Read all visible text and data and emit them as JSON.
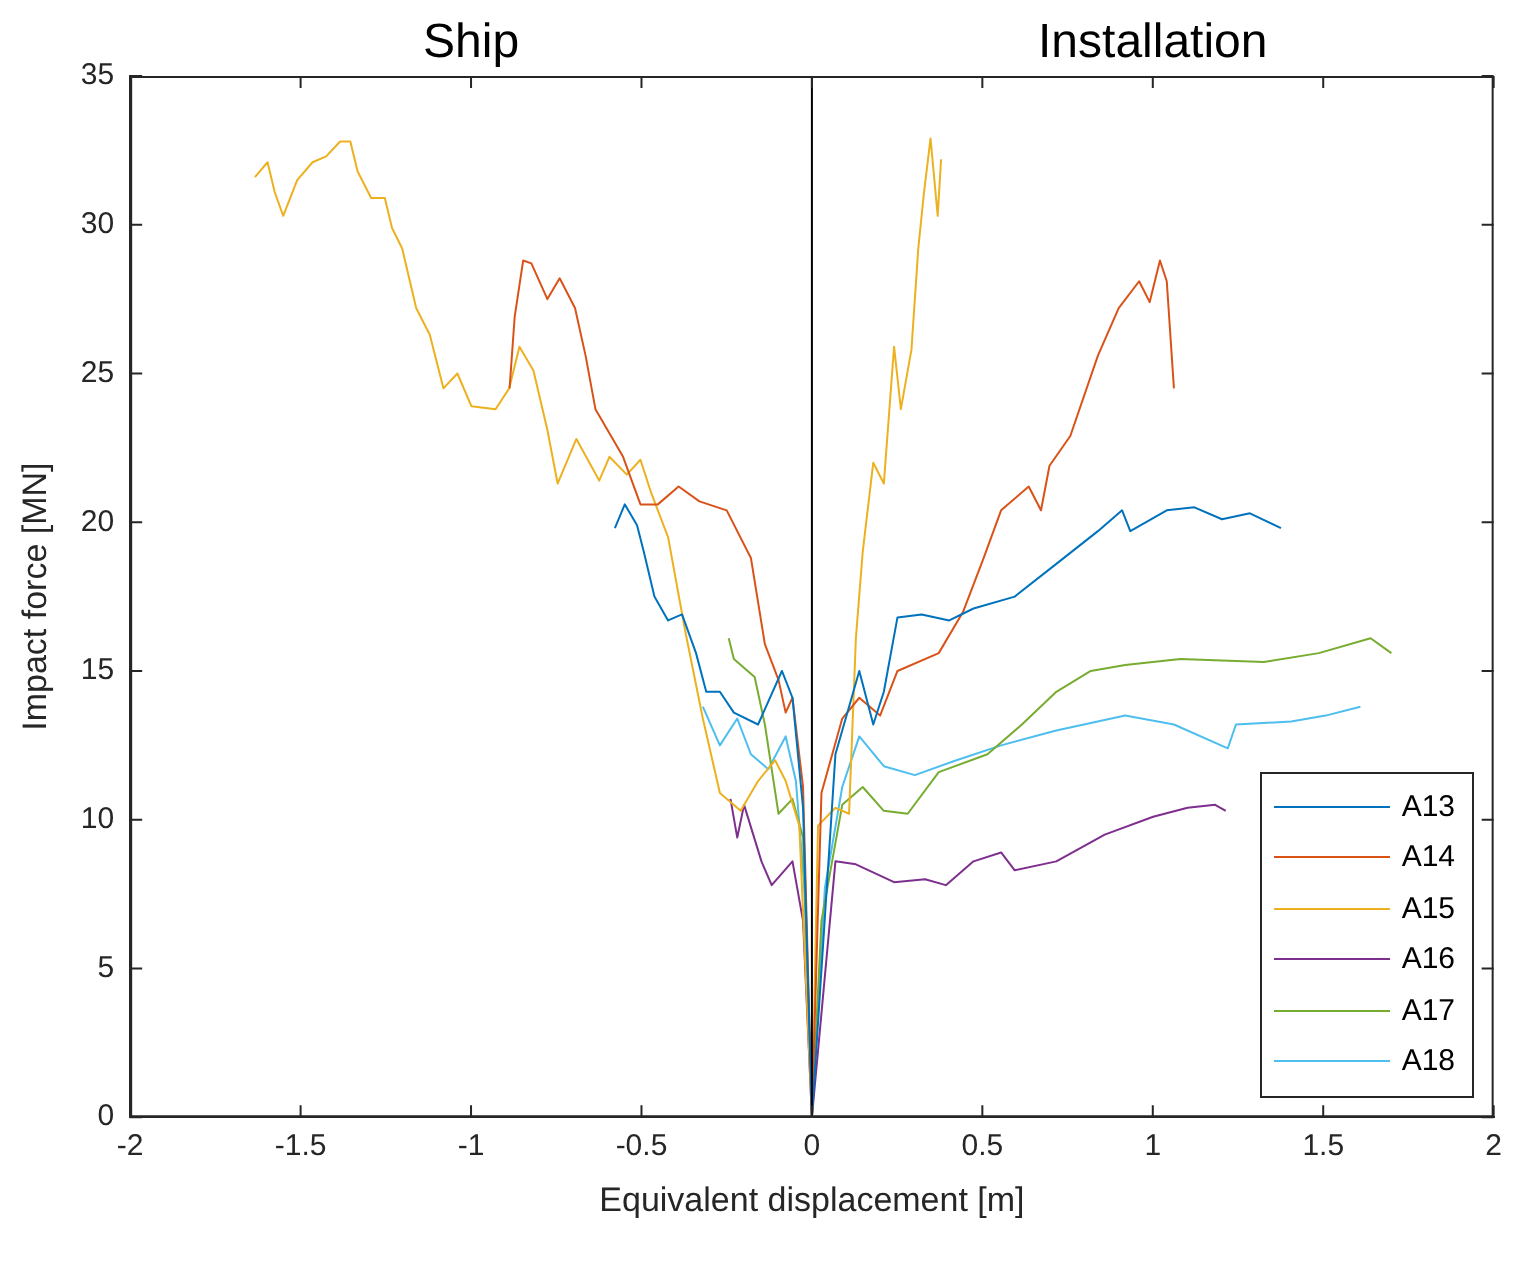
{
  "chart_data": {
    "type": "line",
    "xlabel": "Equivalent displacement [m]",
    "ylabel": "Impact force [MN]",
    "annotations": [
      "Ship",
      "Installation"
    ],
    "xlim": [
      -2,
      2
    ],
    "xticks": [
      -2,
      -1.5,
      -1,
      -0.5,
      0,
      0.5,
      1,
      1.5,
      2
    ],
    "ylim": [
      0,
      35
    ],
    "yticks": [
      0,
      5,
      10,
      15,
      20,
      25,
      30,
      35
    ],
    "grid": false,
    "legend": "bottom right",
    "marker": "none",
    "line_style": "solid",
    "ref_lines": [
      {
        "axis": "x",
        "value": 0,
        "color": "#000000"
      }
    ],
    "series": [
      {
        "name": "A13",
        "color": "#0072bd",
        "x": [
          -0.578,
          -0.549,
          -0.513,
          -0.493,
          -0.462,
          -0.422,
          -0.381,
          -0.34,
          -0.31,
          -0.27,
          -0.229,
          -0.158,
          -0.088,
          -0.057,
          -0.026,
          0,
          0.069,
          0.139,
          0.18,
          0.211,
          0.251,
          0.322,
          0.403,
          0.474,
          0.595,
          0.717,
          0.839,
          0.91,
          0.934,
          1.041,
          1.122,
          1.203,
          1.285,
          1.376
        ],
        "values": [
          19.8,
          20.6,
          19.9,
          19.0,
          17.5,
          16.7,
          16.9,
          15.6,
          14.3,
          14.3,
          13.6,
          13.2,
          15.0,
          14.1,
          10.4,
          0,
          12.2,
          15.0,
          13.2,
          14.3,
          16.8,
          16.9,
          16.7,
          17.1,
          17.5,
          18.6,
          19.7,
          20.4,
          19.7,
          20.4,
          20.5,
          20.1,
          20.3,
          19.8
        ]
      },
      {
        "name": "A14",
        "color": "#d95319",
        "x": [
          -0.887,
          -0.872,
          -0.847,
          -0.823,
          -0.776,
          -0.74,
          -0.695,
          -0.664,
          -0.635,
          -0.554,
          -0.503,
          -0.452,
          -0.391,
          -0.33,
          -0.25,
          -0.179,
          -0.138,
          -0.098,
          -0.077,
          -0.057,
          -0.026,
          0,
          0.028,
          0.089,
          0.139,
          0.2,
          0.251,
          0.372,
          0.444,
          0.504,
          0.555,
          0.636,
          0.672,
          0.697,
          0.758,
          0.839,
          0.9,
          0.96,
          0.991,
          1.021,
          1.041,
          1.062
        ],
        "values": [
          24.5,
          26.9,
          28.8,
          28.7,
          27.5,
          28.2,
          27.2,
          25.6,
          23.8,
          22.2,
          20.6,
          20.6,
          21.2,
          20.7,
          20.4,
          18.8,
          15.9,
          14.7,
          13.6,
          14.1,
          11.1,
          0,
          10.9,
          13.4,
          14.1,
          13.5,
          15.0,
          15.6,
          17.0,
          18.8,
          20.4,
          21.2,
          20.4,
          21.9,
          22.9,
          25.6,
          27.2,
          28.1,
          27.4,
          28.8,
          28.1,
          24.5
        ]
      },
      {
        "name": "A15",
        "color": "#edb120",
        "x": [
          -1.634,
          -1.597,
          -1.576,
          -1.551,
          -1.51,
          -1.465,
          -1.425,
          -1.384,
          -1.354,
          -1.333,
          -1.293,
          -1.253,
          -1.232,
          -1.202,
          -1.161,
          -1.121,
          -1.081,
          -1.04,
          -0.999,
          -0.928,
          -0.888,
          -0.858,
          -0.817,
          -0.776,
          -0.746,
          -0.691,
          -0.624,
          -0.594,
          -0.543,
          -0.503,
          -0.472,
          -0.422,
          -0.371,
          -0.32,
          -0.27,
          -0.209,
          -0.158,
          -0.108,
          -0.077,
          -0.037,
          0,
          0.018,
          0.069,
          0.109,
          0.129,
          0.149,
          0.18,
          0.211,
          0.241,
          0.261,
          0.292,
          0.312,
          0.328,
          0.348,
          0.369,
          0.379
        ],
        "values": [
          31.6,
          32.1,
          31.1,
          30.3,
          31.5,
          32.1,
          32.3,
          32.8,
          32.8,
          31.8,
          30.9,
          30.9,
          29.9,
          29.2,
          27.2,
          26.3,
          24.5,
          25.0,
          23.9,
          23.8,
          24.5,
          25.9,
          25.1,
          23.1,
          21.3,
          22.8,
          21.4,
          22.2,
          21.6,
          22.1,
          21.0,
          19.5,
          16.3,
          13.4,
          10.9,
          10.3,
          11.3,
          12.0,
          11.3,
          9.8,
          0,
          9.8,
          10.4,
          10.2,
          16.1,
          19.0,
          22.0,
          21.3,
          25.9,
          23.8,
          25.8,
          29.2,
          31.0,
          32.9,
          30.3,
          32.2
        ]
      },
      {
        "name": "A16",
        "color": "#7e2f8e",
        "x": [
          -0.239,
          -0.219,
          -0.199,
          -0.148,
          -0.118,
          -0.057,
          -0.026,
          0,
          0.069,
          0.129,
          0.241,
          0.332,
          0.393,
          0.474,
          0.555,
          0.595,
          0.717,
          0.859,
          1.001,
          1.102,
          1.183,
          1.214
        ],
        "values": [
          10.7,
          9.4,
          10.5,
          8.6,
          7.8,
          8.6,
          6.6,
          0,
          8.6,
          8.5,
          7.9,
          8.0,
          7.8,
          8.6,
          8.9,
          8.3,
          8.6,
          9.5,
          10.1,
          10.4,
          10.5,
          10.3
        ]
      },
      {
        "name": "A17",
        "color": "#77ac30",
        "x": [
          -0.244,
          -0.229,
          -0.168,
          -0.138,
          -0.098,
          -0.057,
          -0.026,
          0,
          0.028,
          0.089,
          0.149,
          0.211,
          0.281,
          0.372,
          0.515,
          0.616,
          0.717,
          0.818,
          0.919,
          1.081,
          1.325,
          1.487,
          1.639,
          1.7
        ],
        "values": [
          16.1,
          15.4,
          14.8,
          13.2,
          10.2,
          10.7,
          9.4,
          0,
          6.6,
          10.5,
          11.1,
          10.3,
          10.2,
          11.6,
          12.2,
          13.2,
          14.3,
          15.0,
          15.2,
          15.4,
          15.3,
          15.6,
          16.1,
          15.6
        ]
      },
      {
        "name": "A18",
        "color": "#4dbeee",
        "x": [
          -0.32,
          -0.27,
          -0.219,
          -0.179,
          -0.128,
          -0.077,
          -0.047,
          -0.022,
          0,
          0.038,
          0.089,
          0.139,
          0.211,
          0.302,
          0.424,
          0.555,
          0.717,
          0.919,
          1.062,
          1.22,
          1.244,
          1.406,
          1.507,
          1.609
        ],
        "values": [
          13.8,
          12.5,
          13.4,
          12.2,
          11.7,
          12.8,
          11.3,
          7.7,
          0,
          7.7,
          11.1,
          12.8,
          11.8,
          11.5,
          12.0,
          12.5,
          13.0,
          13.5,
          13.2,
          12.4,
          13.2,
          13.3,
          13.5,
          13.8
        ]
      }
    ]
  }
}
